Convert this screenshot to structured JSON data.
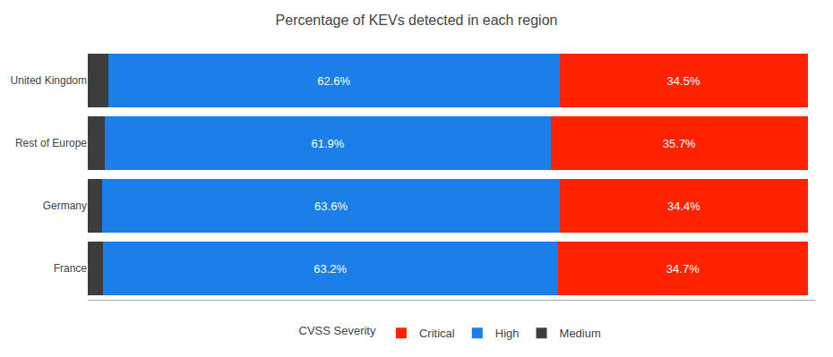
{
  "chart_data": {
    "type": "bar",
    "orientation": "horizontal",
    "stacked": true,
    "title": "Percentage of KEVs detected in each region",
    "categories": [
      "United Kingdom",
      "Rest of Europe",
      "Germany",
      "France"
    ],
    "series": [
      {
        "name": "Medium",
        "color": "#3d3d3d",
        "values": [
          2.9,
          2.4,
          2.0,
          2.1
        ]
      },
      {
        "name": "High",
        "color": "#1a7fe8",
        "values": [
          62.6,
          61.9,
          63.6,
          63.2
        ],
        "data_labels": true,
        "value_labels": [
          "62.6%",
          "61.9%",
          "63.6%",
          "63.2%"
        ]
      },
      {
        "name": "Critical",
        "color": "#ff2200",
        "values": [
          34.5,
          35.7,
          34.4,
          34.7
        ],
        "data_labels": true,
        "value_labels": [
          "34.5%",
          "35.7%",
          "34.4%",
          "34.7%"
        ]
      }
    ],
    "xlim": [
      0,
      101
    ],
    "tick_labels": "y",
    "grid": false,
    "legend": "bottom",
    "legend_title": "CVSS Severity"
  }
}
